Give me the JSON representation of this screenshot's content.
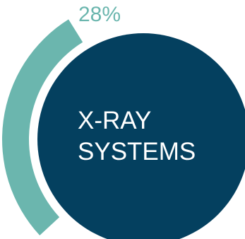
{
  "chart_data": {
    "type": "pie",
    "center_text": [
      "X-RAY",
      "SYSTEMS"
    ],
    "slices": [
      {
        "label": "28%",
        "value": 28,
        "color": "#6bb6ae"
      }
    ],
    "center_color": "#04405f"
  }
}
